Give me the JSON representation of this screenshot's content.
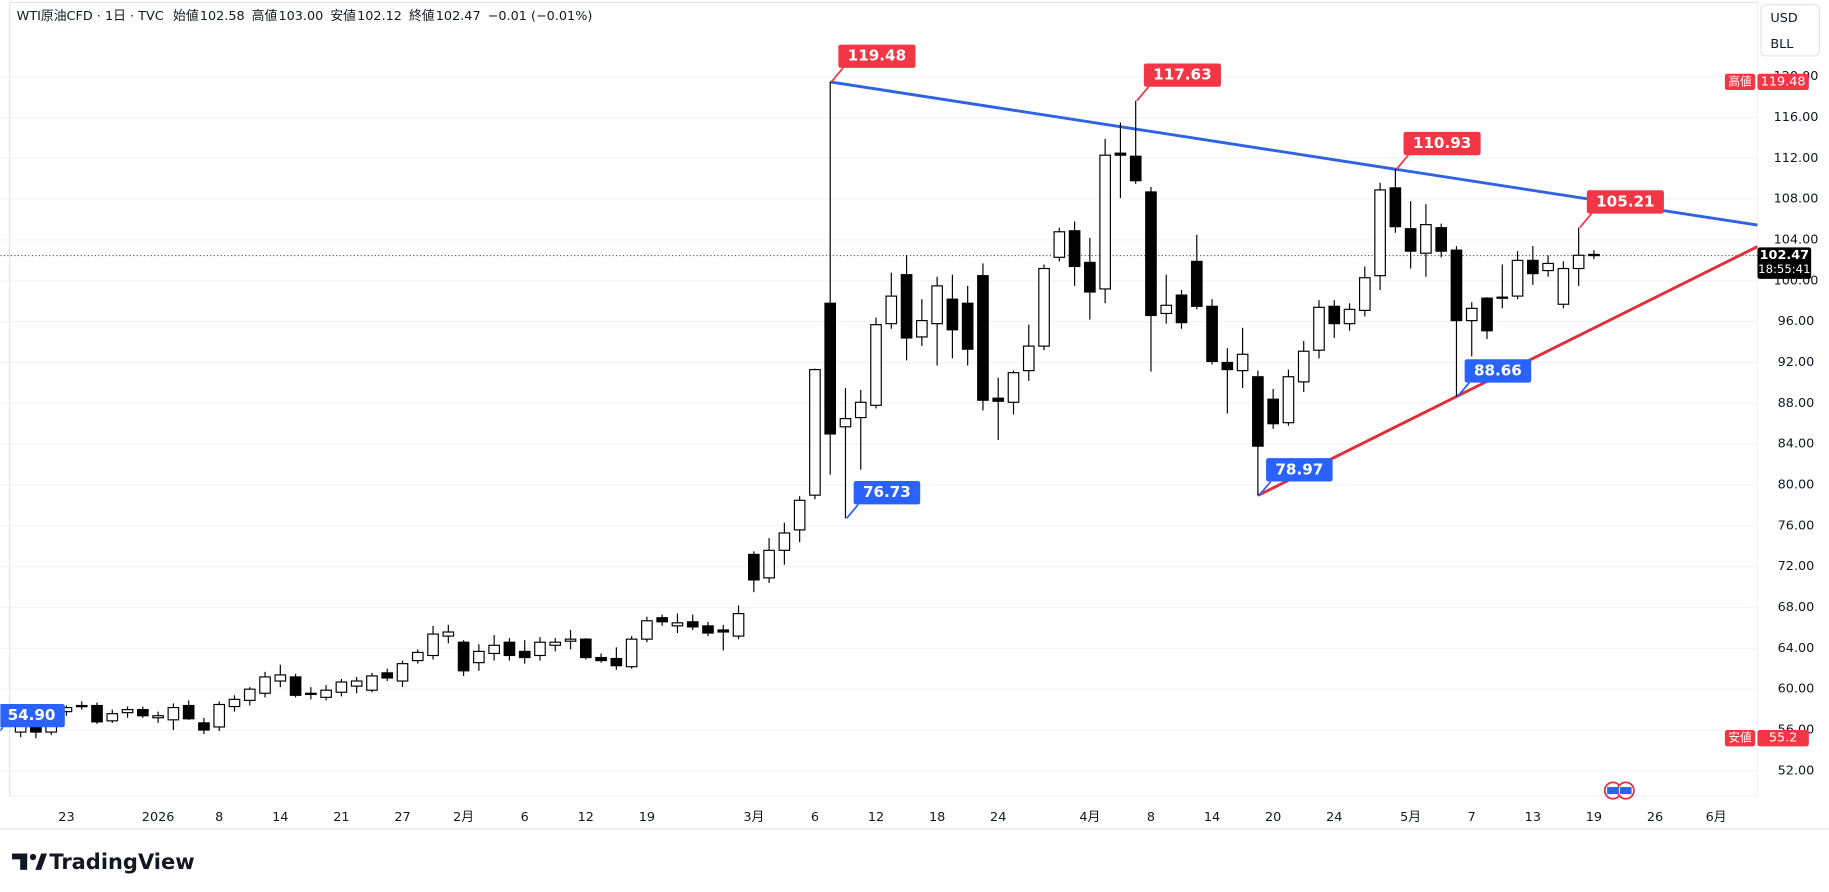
{
  "chart_data": {
    "type": "candlestick",
    "header": {
      "symbol": "WTI原油CFD · 1日 · TVC",
      "items": [
        {
          "label": "始値",
          "value": "102.58"
        },
        {
          "label": "高値",
          "value": "103.00"
        },
        {
          "label": "安値",
          "value": "102.12"
        },
        {
          "label": "終値",
          "value": "102.47"
        }
      ],
      "change": "−0.01 (−0.01%)"
    },
    "categories": [
      null,
      null,
      null,
      "23",
      null,
      null,
      null,
      null,
      null,
      "2026",
      null,
      null,
      null,
      "8",
      null,
      null,
      null,
      "14",
      null,
      null,
      null,
      "21",
      null,
      null,
      null,
      "27",
      null,
      null,
      null,
      "2月",
      null,
      null,
      null,
      "6",
      null,
      null,
      null,
      "12",
      null,
      null,
      null,
      "19",
      null,
      null,
      null,
      null,
      null,
      null,
      "3月",
      null,
      null,
      null,
      "6",
      null,
      null,
      null,
      "12",
      null,
      null,
      null,
      "18",
      null,
      null,
      null,
      "24",
      null,
      null,
      null,
      null,
      null,
      "4月",
      null,
      null,
      null,
      "8",
      null,
      null,
      null,
      "14",
      null,
      null,
      null,
      "20",
      null,
      null,
      null,
      "24",
      null,
      null,
      null,
      null,
      "5月",
      null,
      null,
      null,
      "7",
      null,
      null,
      null,
      "13",
      null,
      null,
      null,
      "19",
      null,
      null,
      null,
      "26",
      null,
      null,
      null,
      "6月"
    ],
    "open": [
      55.8,
      57.0,
      55.8,
      57.8,
      58.4,
      58.4,
      56.9,
      57.7,
      58.0,
      57.2,
      57.0,
      58.4,
      56.7,
      56.3,
      58.3,
      58.9,
      59.6,
      60.8,
      61.2,
      59.5,
      59.2,
      59.7,
      60.3,
      59.9,
      61.6,
      60.8,
      62.8,
      63.3,
      65.2,
      64.6,
      62.6,
      63.5,
      64.6,
      63.7,
      63.3,
      64.3,
      64.7,
      64.9,
      63.1,
      63.0,
      62.2,
      64.9,
      67.0,
      66.2,
      66.6,
      66.2,
      65.8,
      65.2,
      73.2,
      70.9,
      73.6,
      75.6,
      79.0,
      97.8,
      85.7,
      86.6,
      87.8,
      95.8,
      100.6,
      94.5,
      95.8,
      98.2,
      97.8,
      100.5,
      88.5,
      88.1,
      91.2,
      93.6,
      102.3,
      104.9,
      101.8,
      99.2,
      112.5,
      112.2,
      108.7,
      96.8,
      98.6,
      101.9,
      97.5,
      92.0,
      91.2,
      90.6,
      88.4,
      86.1,
      90.1,
      93.2,
      97.5,
      95.8,
      97.1,
      100.5,
      109.1,
      105.1,
      102.7,
      105.2,
      103.0,
      96.1,
      98.3,
      98.3,
      98.5,
      102.0,
      101.0,
      97.7,
      101.2,
      102.58,
      null,
      null,
      null,
      null,
      null,
      null,
      null,
      null
    ],
    "high": [
      57.3,
      57.5,
      58.0,
      58.4,
      58.8,
      58.7,
      58.0,
      58.3,
      58.3,
      57.8,
      58.6,
      58.9,
      57.2,
      58.8,
      59.4,
      60.2,
      61.7,
      62.4,
      61.5,
      60.2,
      60.4,
      61.0,
      61.2,
      61.6,
      62.0,
      62.8,
      63.9,
      66.2,
      66.3,
      64.8,
      64.4,
      65.3,
      65.0,
      64.8,
      65.1,
      65.0,
      65.8,
      65.0,
      63.5,
      64.1,
      65.2,
      67.1,
      67.3,
      67.4,
      67.3,
      66.6,
      66.3,
      68.2,
      73.5,
      74.8,
      76.3,
      78.9,
      91.4,
      119.48,
      89.5,
      89.3,
      96.4,
      100.8,
      102.5,
      98.2,
      100.4,
      100.6,
      99.5,
      101.7,
      90.5,
      91.2,
      95.7,
      101.6,
      105.2,
      105.8,
      104.2,
      113.9,
      115.5,
      117.63,
      109.2,
      100.6,
      99.1,
      104.5,
      98.2,
      93.4,
      95.4,
      91.2,
      89.4,
      91.3,
      94.1,
      98.1,
      98.1,
      97.8,
      101.4,
      109.6,
      110.93,
      107.8,
      107.5,
      105.6,
      103.4,
      97.9,
      98.4,
      101.6,
      102.9,
      103.4,
      102.5,
      101.9,
      105.21,
      103.0,
      null,
      null,
      null,
      null,
      null,
      null,
      null,
      null
    ],
    "low": [
      55.3,
      55.2,
      55.5,
      57.4,
      58.0,
      56.6,
      56.7,
      57.2,
      57.2,
      56.7,
      56.0,
      57.0,
      55.6,
      55.9,
      57.8,
      58.4,
      59.2,
      60.2,
      59.2,
      59.0,
      58.9,
      59.3,
      59.6,
      59.7,
      60.8,
      60.2,
      62.5,
      62.9,
      64.5,
      61.3,
      61.8,
      62.8,
      62.8,
      62.5,
      62.8,
      63.7,
      63.9,
      62.9,
      62.6,
      61.9,
      62.0,
      64.6,
      66.2,
      65.5,
      65.8,
      65.2,
      63.8,
      64.9,
      69.5,
      70.4,
      72.2,
      74.4,
      78.6,
      81.0,
      76.73,
      81.5,
      87.5,
      95.3,
      92.2,
      93.6,
      91.7,
      92.4,
      91.7,
      87.3,
      84.4,
      86.9,
      90.2,
      93.2,
      101.9,
      99.5,
      96.2,
      97.8,
      108.1,
      109.5,
      91.1,
      95.8,
      95.3,
      97.2,
      91.8,
      87.0,
      89.5,
      78.97,
      85.5,
      85.8,
      89.1,
      92.4,
      94.4,
      95.1,
      96.5,
      99.1,
      104.7,
      101.2,
      100.4,
      102.3,
      88.66,
      92.6,
      94.3,
      97.3,
      98.2,
      99.6,
      100.4,
      97.3,
      99.5,
      102.12,
      null,
      null,
      null,
      null,
      null,
      null,
      null,
      null
    ],
    "close": [
      56.4,
      55.8,
      57.5,
      58.2,
      58.3,
      56.8,
      57.6,
      58.0,
      57.4,
      57.4,
      58.2,
      57.1,
      56.0,
      58.5,
      59.0,
      60.0,
      61.2,
      61.4,
      59.4,
      59.6,
      59.9,
      60.7,
      60.8,
      61.3,
      61.1,
      62.5,
      63.6,
      65.4,
      65.6,
      61.8,
      63.7,
      64.3,
      63.3,
      63.1,
      64.6,
      64.6,
      64.9,
      63.1,
      62.8,
      62.3,
      64.9,
      66.7,
      66.6,
      66.5,
      66.1,
      65.5,
      65.6,
      67.4,
      70.7,
      73.6,
      75.3,
      78.5,
      91.3,
      85.0,
      86.5,
      88.1,
      95.7,
      98.5,
      94.4,
      96.1,
      99.5,
      95.2,
      93.3,
      88.3,
      88.2,
      91.0,
      93.6,
      101.2,
      104.8,
      101.4,
      98.9,
      112.3,
      112.3,
      109.8,
      96.6,
      97.6,
      95.9,
      97.5,
      92.1,
      91.3,
      92.8,
      83.8,
      86.0,
      90.6,
      93.1,
      97.4,
      95.8,
      97.2,
      100.3,
      108.9,
      105.3,
      102.9,
      105.5,
      102.9,
      96.1,
      97.3,
      95.1,
      98.4,
      102.0,
      100.7,
      101.7,
      101.2,
      102.5,
      102.47,
      null,
      null,
      null,
      null,
      null,
      null,
      null,
      null
    ],
    "up_color": "#ffffff",
    "down_color": "#000000",
    "wick_color": "#000000",
    "ylim": [
      49.5,
      127.5
    ],
    "yticks": [
      {
        "value": 52,
        "label": "52.00"
      },
      {
        "value": 56,
        "label": "56.00"
      },
      {
        "value": 60,
        "label": "60.00"
      },
      {
        "value": 64,
        "label": "64.00"
      },
      {
        "value": 68,
        "label": "68.00"
      },
      {
        "value": 72,
        "label": "72.00"
      },
      {
        "value": 76,
        "label": "76.00"
      },
      {
        "value": 80,
        "label": "80.00"
      },
      {
        "value": 84,
        "label": "84.00"
      },
      {
        "value": 88,
        "label": "88.00"
      },
      {
        "value": 92,
        "label": "92.00"
      },
      {
        "value": 96,
        "label": "96.00"
      },
      {
        "value": 100,
        "label": "100.00"
      },
      {
        "value": 104,
        "label": "104.00"
      },
      {
        "value": 108,
        "label": "108.00"
      },
      {
        "value": 112,
        "label": "112.00"
      },
      {
        "value": 116,
        "label": "116.00"
      },
      {
        "value": 120,
        "label": "120.00"
      }
    ],
    "grid": true,
    "trendlines": [
      {
        "color": "#2f63e4",
        "x": [
          53,
          90
        ],
        "y": [
          119.48,
          110.93
        ]
      },
      {
        "color": "#e0303c",
        "x": [
          81,
          94
        ],
        "y": [
          78.97,
          88.66
        ]
      }
    ],
    "annotations": [
      {
        "value": 119.48,
        "index": 53,
        "color": "#f23645"
      },
      {
        "value": 117.63,
        "index": 73,
        "color": "#f23645"
      },
      {
        "value": 110.93,
        "index": 90,
        "color": "#f23645"
      },
      {
        "value": 105.21,
        "index": 102,
        "color": "#f23645"
      },
      {
        "value": 76.73,
        "index": 54,
        "color": "#2962ff"
      },
      {
        "value": 78.97,
        "index": 81,
        "color": "#2962ff"
      },
      {
        "value": 88.66,
        "index": 94,
        "color": "#2962ff"
      },
      {
        "value": 54.9,
        "label": "54.90",
        "index": -2,
        "color": "#2962ff"
      }
    ],
    "high_badge": "高値",
    "low_badge": "安値",
    "countdown": "18:55:41",
    "currency": "USD",
    "unit": "BLL",
    "brand": "TradingView"
  }
}
